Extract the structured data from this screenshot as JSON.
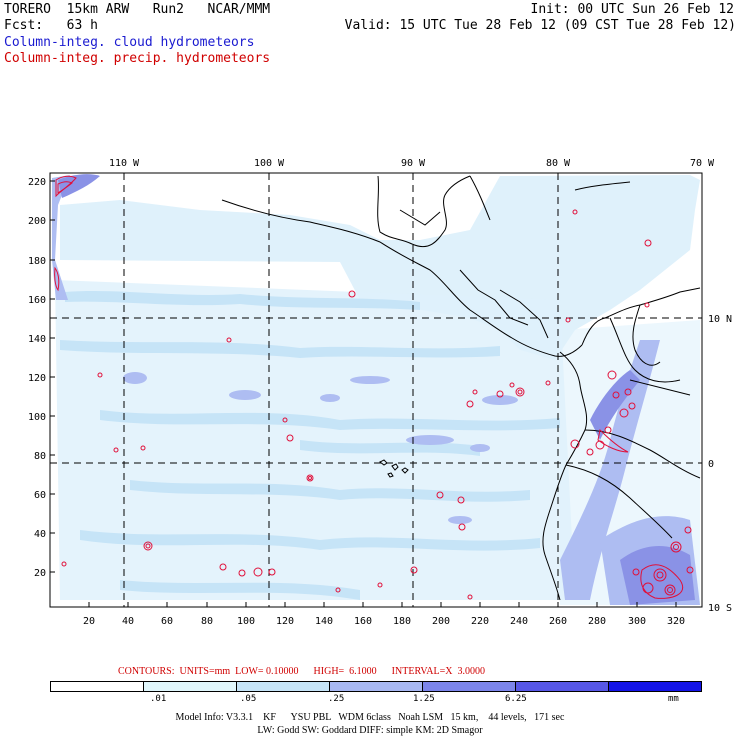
{
  "header": {
    "line1_left": "TORERO  15km ARW   Run2   NCAR/MMM",
    "line1_right": "Init: 00 UTC Sun 26 Feb 12",
    "line2_left": "Fcst:   63 h",
    "line2_right": "Valid: 15 UTC Tue 28 Feb 12 (09 CST Tue 28 Feb 12)",
    "field1": "Column-integ. cloud hydrometeors",
    "field2": "Column-integ. precip. hydrometeors"
  },
  "map": {
    "lon_labels": [
      "110 W",
      "100 W",
      "90 W",
      "80 W",
      "70 W"
    ],
    "lat_labels": [
      "10 N",
      "0",
      "10 S"
    ],
    "x_ticks": [
      "20",
      "40",
      "60",
      "80",
      "100",
      "120",
      "140",
      "160",
      "180",
      "200",
      "220",
      "240",
      "260",
      "280",
      "300",
      "320"
    ],
    "y_ticks": [
      "220",
      "200",
      "180",
      "160",
      "140",
      "120",
      "100",
      "80",
      "60",
      "40",
      "20"
    ],
    "colors": {
      "cloud_light": "#dff1fb",
      "cloud_mid": "#aebdf2",
      "cloud_dark": "#8a92e6",
      "precip": "#e0103a",
      "coast": "#000000"
    }
  },
  "legend": {
    "contours_text": "CONTOURS:  UNITS=mm  LOW= 0.10000      HIGH=  6.1000      INTERVAL=X  3.0000",
    "levels": [
      ".01",
      ".05",
      ".25",
      "1.25",
      "6.25"
    ],
    "unit": "mm",
    "colors": [
      "#ffffff",
      "#e0f6fb",
      "#c6e4f7",
      "#a8b8f2",
      "#7c85ea",
      "#5757e6",
      "#1414e6"
    ]
  },
  "footer": {
    "line1": "Model Info: V3.3.1    KF      YSU PBL   WDM 6class   Noah LSM   15 km,    44 levels,   171 sec",
    "line2": "LW: Godd SW: Goddard DIFF: simple KM: 2D Smagor"
  }
}
